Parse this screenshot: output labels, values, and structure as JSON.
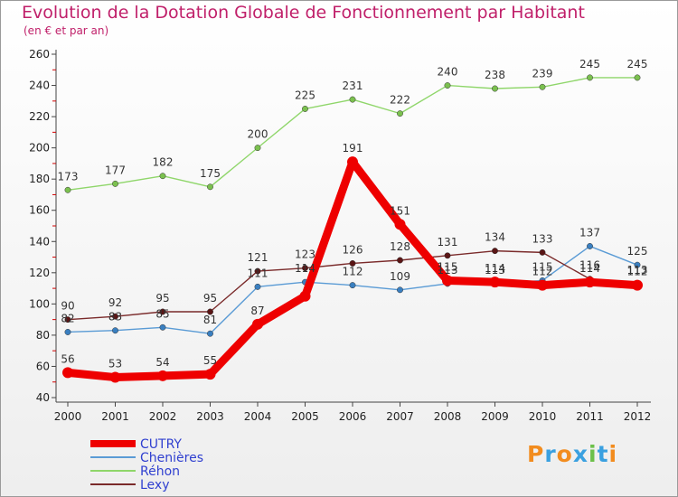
{
  "title": "Evolution de la Dotation Globale de Fonctionnement par Habitant",
  "subtitle": "(en € et par an)",
  "logo": "Proxiti",
  "chart_data": {
    "type": "line",
    "x": [
      "2000",
      "2001",
      "2002",
      "2003",
      "2004",
      "2005",
      "2006",
      "2007",
      "2008",
      "2009",
      "2010",
      "2011",
      "2012"
    ],
    "ylim": [
      40,
      260
    ],
    "yticks": [
      40,
      60,
      80,
      100,
      120,
      140,
      160,
      180,
      200,
      220,
      240,
      260
    ],
    "grid": false,
    "legend_position": "bottom-left",
    "series": [
      {
        "name": "Chenières",
        "color": "#5a9bd5",
        "marker": "#3a7fc0",
        "values": [
          82,
          83,
          85,
          81,
          111,
          114,
          112,
          109,
          113,
          113,
          115,
          137,
          125
        ],
        "labels": [
          "82",
          "83",
          "85",
          "81",
          "111",
          "114",
          "112",
          "109",
          "113",
          "113",
          "115",
          "137",
          "125"
        ]
      },
      {
        "name": "Réhon",
        "color": "#8fd66a",
        "marker": "#7bc04f",
        "values": [
          173,
          177,
          182,
          175,
          200,
          225,
          231,
          222,
          240,
          238,
          239,
          245,
          245
        ],
        "labels": [
          "173",
          "177",
          "182",
          "175",
          "200",
          "225",
          "231",
          "222",
          "240",
          "238",
          "239",
          "245",
          "245"
        ]
      },
      {
        "name": "Lexy",
        "color": "#7a2a2a",
        "marker": "#5a1515",
        "values": [
          90,
          92,
          95,
          95,
          121,
          123,
          126,
          128,
          131,
          134,
          133,
          116,
          113
        ],
        "labels": [
          "90",
          "92",
          "95",
          "95",
          "121",
          "123",
          "126",
          "128",
          "131",
          "134",
          "133",
          "116",
          "113"
        ]
      },
      {
        "name": "CUTRY",
        "color": "#ee0000",
        "marker": "#ee0000",
        "values": [
          56,
          53,
          54,
          55,
          87,
          105,
          191,
          151,
          115,
          114,
          112,
          114,
          112
        ],
        "labels": [
          "56",
          "53",
          "54",
          "55",
          "87",
          "",
          "191",
          "151",
          "115",
          "114",
          "112",
          "114",
          "112"
        ]
      }
    ],
    "legend": [
      "CUTRY",
      "Chenières",
      "Réhon",
      "Lexy"
    ]
  }
}
